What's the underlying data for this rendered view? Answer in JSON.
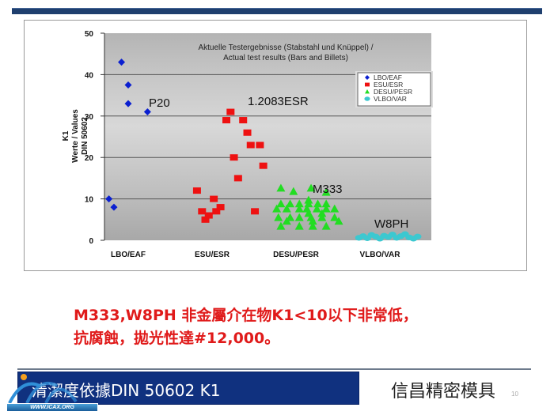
{
  "slide": {
    "title": "清潔度依據DIN 50602 K1",
    "company": "信昌精密模具",
    "page_number": "10",
    "logo_text": "WWW.ICAX.ORG",
    "note_line1": "M333,W8PH 非金屬介在物K1<10以下非常低，",
    "note_line2": "抗腐蝕，拋光性達#12,000。",
    "colors": {
      "topbar": "#1f3f6e",
      "title_bar": "#10317f",
      "note": "#e01a1a"
    }
  },
  "chart_data": {
    "type": "scatter",
    "title_line1": "Aktuelle Testergebnisse (Stabstahl und Knüppel) /",
    "title_line2": "Actual test results (Bars and Billets)",
    "ylabel_line1": "K1",
    "ylabel_line2": "Werte / Values",
    "ylabel_line3": "DIN 50602",
    "ylim": [
      0,
      50
    ],
    "yticks": [
      "0",
      "10",
      "20",
      "30",
      "40",
      "50"
    ],
    "xlim": [
      0.7,
      4.6
    ],
    "categories": [
      "LBO/EAF",
      "ESU/ESR",
      "DESU/PESR",
      "VLBO/VAR"
    ],
    "grid": true,
    "legend_position": "top-right",
    "series": [
      {
        "name": "LBO/EAF",
        "marker": "diamond",
        "color": "#0a1fd0",
        "points": [
          [
            0.92,
            43
          ],
          [
            1.0,
            37.5
          ],
          [
            1.0,
            33
          ],
          [
            1.23,
            31
          ],
          [
            0.77,
            10
          ],
          [
            0.83,
            8
          ]
        ]
      },
      {
        "name": "ESU/ESR",
        "marker": "square",
        "color": "#ee1111",
        "points": [
          [
            1.82,
            12
          ],
          [
            1.88,
            7
          ],
          [
            1.92,
            5
          ],
          [
            1.96,
            6
          ],
          [
            2.02,
            10
          ],
          [
            2.05,
            7
          ],
          [
            2.1,
            8
          ],
          [
            2.17,
            29
          ],
          [
            2.22,
            31
          ],
          [
            2.26,
            20
          ],
          [
            2.31,
            15
          ],
          [
            2.37,
            29
          ],
          [
            2.42,
            26
          ],
          [
            2.46,
            23
          ],
          [
            2.57,
            23
          ],
          [
            2.61,
            18
          ],
          [
            2.51,
            7
          ]
        ]
      },
      {
        "name": "DESU/PESR",
        "marker": "triangle",
        "color": "#22dd22",
        "points": [
          [
            2.82,
            12.6
          ],
          [
            2.97,
            11.8
          ],
          [
            3.18,
            12.6
          ],
          [
            3.36,
            11.6
          ],
          [
            3.15,
            9.7
          ],
          [
            2.82,
            8.8
          ],
          [
            2.93,
            8.8
          ],
          [
            3.04,
            8.8
          ],
          [
            3.15,
            8.8
          ],
          [
            3.26,
            8.8
          ],
          [
            3.36,
            8.8
          ],
          [
            2.77,
            7.6
          ],
          [
            2.89,
            7.6
          ],
          [
            3.04,
            7.6
          ],
          [
            3.13,
            7.6
          ],
          [
            3.25,
            7.6
          ],
          [
            3.36,
            7.6
          ],
          [
            3.46,
            7.6
          ],
          [
            3.15,
            6.5
          ],
          [
            3.31,
            6.5
          ],
          [
            2.79,
            5.5
          ],
          [
            2.93,
            5.5
          ],
          [
            3.04,
            5.5
          ],
          [
            3.18,
            5.5
          ],
          [
            3.31,
            5.5
          ],
          [
            3.46,
            5.5
          ],
          [
            2.89,
            4.6
          ],
          [
            3.2,
            4.6
          ],
          [
            3.51,
            4.6
          ],
          [
            2.82,
            3.4
          ],
          [
            3.04,
            3.4
          ],
          [
            3.2,
            3.4
          ],
          [
            3.36,
            3.4
          ]
        ]
      },
      {
        "name": "VLBO/VAR",
        "marker": "circle",
        "color": "#3cc8d0",
        "points": [
          [
            3.75,
            0.6
          ],
          [
            3.8,
            1.0
          ],
          [
            3.85,
            0.5
          ],
          [
            3.9,
            1.3
          ],
          [
            3.95,
            0.9
          ],
          [
            4.0,
            0.4
          ],
          [
            4.05,
            1.1
          ],
          [
            4.1,
            0.8
          ],
          [
            4.15,
            1.4
          ],
          [
            4.2,
            0.6
          ],
          [
            4.25,
            1.0
          ],
          [
            4.3,
            1.5
          ],
          [
            4.35,
            0.7
          ],
          [
            4.4,
            0.4
          ],
          [
            4.45,
            0.9
          ]
        ]
      }
    ],
    "annotations": [
      "P20",
      "1.2083ESR",
      "M333",
      "W8PH"
    ]
  }
}
